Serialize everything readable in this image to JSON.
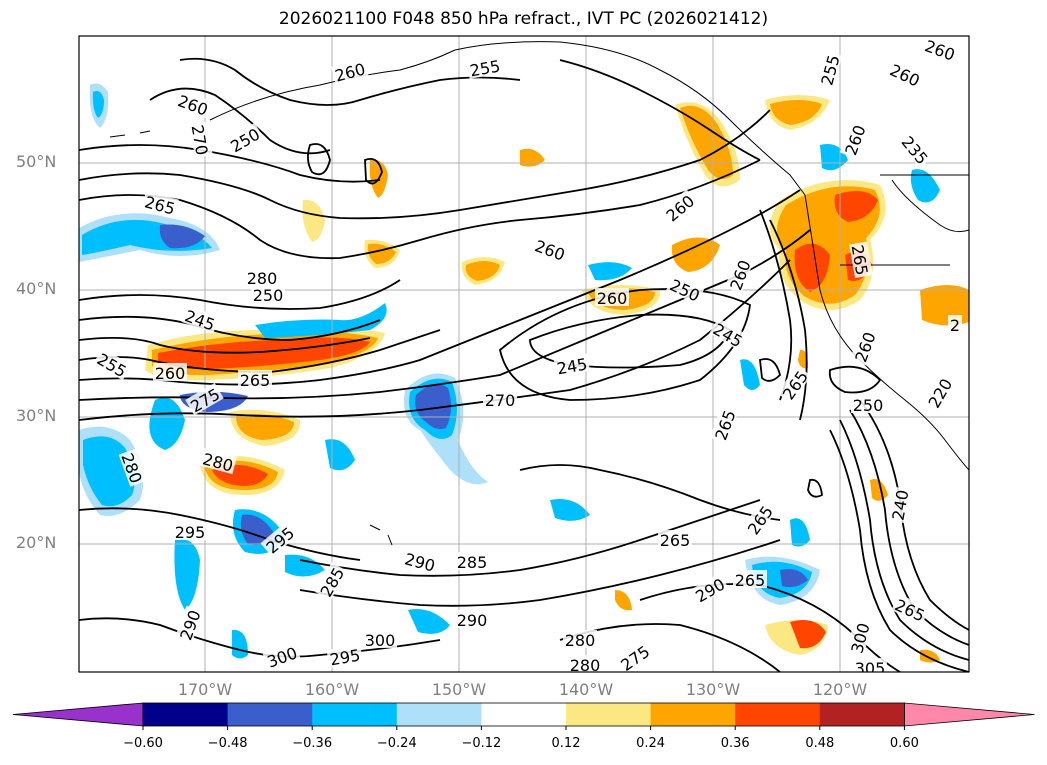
{
  "title": "2026021100 F048 850 hPa refract., IVT PC (2026021412)",
  "lat_labels": [
    "50°N",
    "40°N",
    "30°N",
    "20°N"
  ],
  "lon_labels": [
    "170°W",
    "160°W",
    "150°W",
    "140°W",
    "130°W",
    "120°W"
  ],
  "colorbar": {
    "ticks": [
      "−0.60",
      "−0.48",
      "−0.36",
      "−0.24",
      "−0.12",
      "0.12",
      "0.24",
      "0.36",
      "0.48",
      "0.60"
    ],
    "colors": [
      "#9932cc",
      "#00008b",
      "#3a5fcd",
      "#00bfff",
      "#afe0fa",
      "#ffffff",
      "#fce883",
      "#ffa500",
      "#ff4500",
      "#b22222",
      "#ff88aa"
    ]
  },
  "contour_labels": [
    "260",
    "255",
    "260",
    "250",
    "270",
    "255",
    "260",
    "265",
    "245",
    "250",
    "255",
    "260",
    "265",
    "275",
    "280",
    "280",
    "295",
    "295",
    "285",
    "290",
    "285",
    "290",
    "300",
    "300",
    "295",
    "290",
    "270",
    "260",
    "260",
    "250",
    "245",
    "245",
    "265",
    "260",
    "265",
    "250",
    "260",
    "235",
    "240",
    "265",
    "300",
    "305",
    "290",
    "265",
    "280",
    "280",
    "275",
    "280",
    "260",
    "260",
    "265",
    "265",
    "265",
    "260",
    "220",
    "2"
  ]
}
